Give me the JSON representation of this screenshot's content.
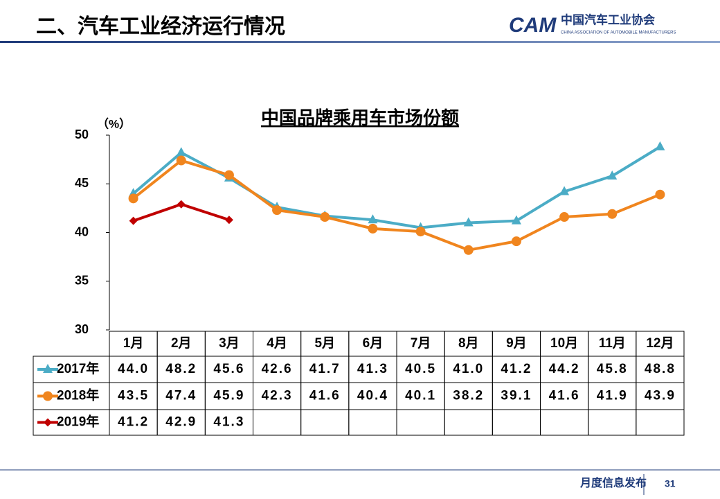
{
  "header": {
    "title": "二、汽车工业经济运行情况",
    "logo_mark": "CAM",
    "logo_name": "中国汽车工业协会",
    "logo_subtitle": "CHINA ASSOCIATION OF AUTOMOBILE MANUFACTURERS"
  },
  "chart_data": {
    "type": "line",
    "title": "中国品牌乘用车市场份额",
    "y_label": "（%）",
    "categories": [
      "1月",
      "2月",
      "3月",
      "4月",
      "5月",
      "6月",
      "7月",
      "8月",
      "9月",
      "10月",
      "11月",
      "12月"
    ],
    "series": [
      {
        "name": "2017年",
        "color": "#4bacc6",
        "marker": "triangle",
        "values": [
          44.0,
          48.2,
          45.6,
          42.6,
          41.7,
          41.3,
          40.5,
          41.0,
          41.2,
          44.2,
          45.8,
          48.8
        ],
        "value_labels": [
          "44.0",
          "48.2",
          "45.6",
          "42.6",
          "41.7",
          "41.3",
          "40.5",
          "41.0",
          "41.2",
          "44.2",
          "45.8",
          "48.8"
        ]
      },
      {
        "name": "2018年",
        "color": "#f0851e",
        "marker": "circle",
        "values": [
          43.5,
          47.4,
          45.9,
          42.3,
          41.6,
          40.4,
          40.1,
          38.2,
          39.1,
          41.6,
          41.9,
          43.9
        ],
        "value_labels": [
          "43.5",
          "47.4",
          "45.9",
          "42.3",
          "41.6",
          "40.4",
          "40.1",
          "38.2",
          "39.1",
          "41.6",
          "41.9",
          "43.9"
        ]
      },
      {
        "name": "2019年",
        "color": "#c00000",
        "marker": "diamond",
        "values": [
          41.2,
          42.9,
          41.3,
          null,
          null,
          null,
          null,
          null,
          null,
          null,
          null,
          null
        ],
        "value_labels": [
          "41.2",
          "42.9",
          "41.3",
          null,
          null,
          null,
          null,
          null,
          null,
          null,
          null,
          null
        ]
      }
    ],
    "ylim": [
      30,
      50
    ],
    "yticks": [
      30,
      35,
      40,
      45,
      50
    ],
    "grid": false
  },
  "footer": {
    "text": "月度信息发布",
    "page": "31"
  }
}
